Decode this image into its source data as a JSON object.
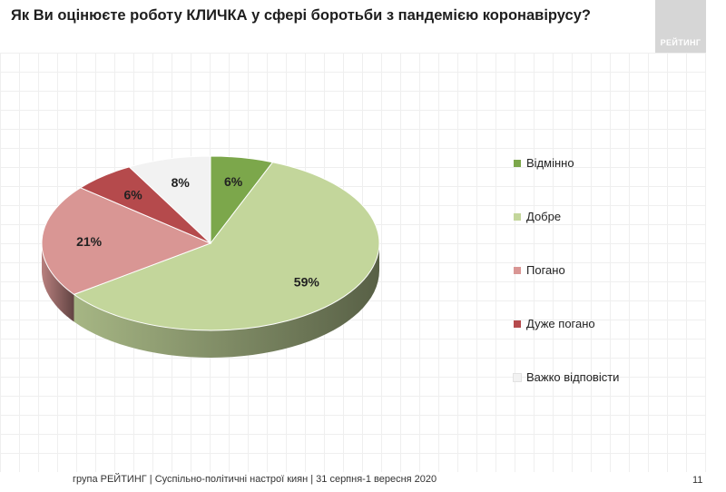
{
  "header": {
    "title": "Як Ви оцінюєте роботу КЛИЧКА у сфері боротьби з пандемією коронавірусу?",
    "logo_text": "РЕЙТИНГ"
  },
  "chart_data": {
    "type": "pie",
    "title": "Як Ви оцінюєте роботу КЛИЧКА у сфері боротьби з пандемією коронавірусу?",
    "legend_position": "right",
    "slices": [
      {
        "label": "Відмінно",
        "value": 6,
        "display": "6%",
        "color": "#7ca74b"
      },
      {
        "label": "Добре",
        "value": 59,
        "display": "59%",
        "color": "#c3d69b"
      },
      {
        "label": "Погано",
        "value": 21,
        "display": "21%",
        "color": "#d99694"
      },
      {
        "label": "Дуже погано",
        "value": 6,
        "display": "6%",
        "color": "#b54a4c"
      },
      {
        "label": "Важко відповісти",
        "value": 8,
        "display": "8%",
        "color": "#f2f2f2"
      }
    ]
  },
  "footer": {
    "text": "група РЕЙТИНГ  |  Суспільно-політичні настрої киян | 31 серпня-1 вересня  2020",
    "page_number": "11"
  }
}
